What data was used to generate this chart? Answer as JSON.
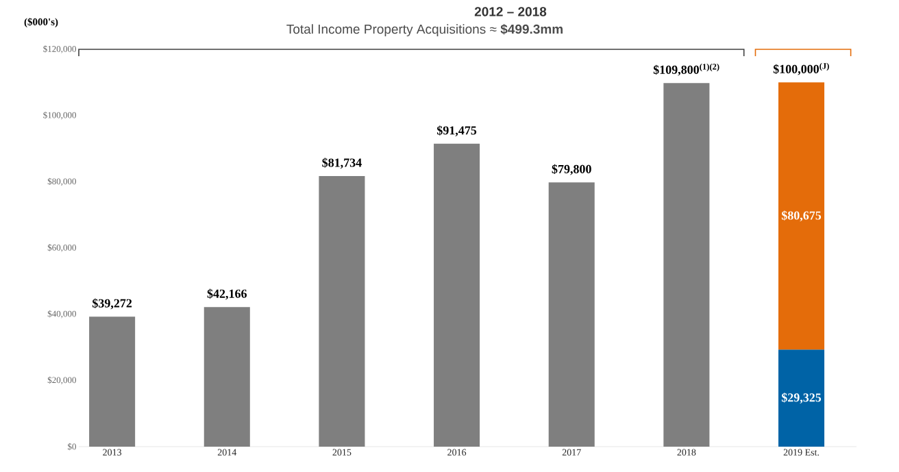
{
  "chart_data": {
    "type": "bar",
    "stacked": true,
    "title": "2012 – 2018",
    "subtitle": "Total Income Property Acquisitions ≈ **$499.3mm**",
    "ylabel": "($000's)",
    "categories": [
      "2013",
      "2014",
      "2015",
      "2016",
      "2017",
      "2018",
      "2019 Est."
    ],
    "series": [
      {
        "color": "#7f7f7f",
        "values": [
          39272,
          42166,
          81734,
          91475,
          79800,
          109800,
          null
        ],
        "value_labels": [
          "$39,272",
          "$42,166",
          "$81,734",
          "$91,475",
          "$79,800",
          "$109,800$^{(1)(2)}$",
          null
        ]
      },
      {
        "color": "#0063a6",
        "values": [
          null,
          null,
          null,
          null,
          null,
          null,
          29325
        ],
        "value_labels": [
          null,
          null,
          null,
          null,
          null,
          null,
          "$29,325"
        ]
      },
      {
        "color": "#e46c0a",
        "values": [
          null,
          null,
          null,
          null,
          null,
          null,
          80675
        ],
        "value_labels": [
          null,
          null,
          null,
          null,
          null,
          null,
          "$80,675"
        ]
      }
    ],
    "annotations": [
      {
        "text": "$100,000$^{(J)}$",
        "x": "2019 Est.",
        "y": 110000
      }
    ],
    "ylim": [
      0,
      120000
    ],
    "yticks": [
      {
        "value": 0,
        "label": "$0"
      },
      {
        "value": 20000,
        "label": "$20,000"
      },
      {
        "value": 40000,
        "label": "$40,000"
      },
      {
        "value": 60000,
        "label": "$60,000"
      },
      {
        "value": 80000,
        "label": "$80,000"
      },
      {
        "value": 100000,
        "label": "$100,000"
      },
      {
        "value": 120000,
        "label": "$120,000"
      }
    ]
  }
}
